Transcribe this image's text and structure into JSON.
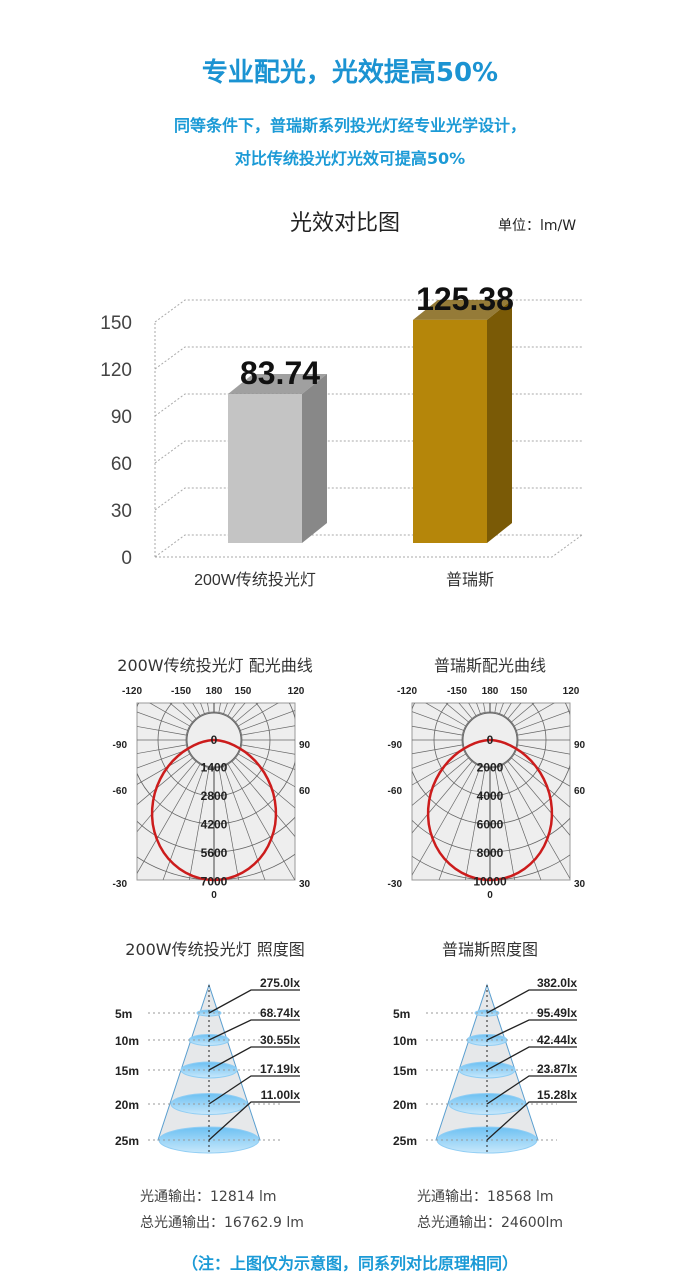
{
  "header": {
    "title": "专业配光，光效提高50%",
    "subtitle_line1": "同等条件下，普瑞斯系列投光灯经专业光学设计，",
    "subtitle_line2": "对比传统投光灯光效可提高50%"
  },
  "chart_data": {
    "type": "bar",
    "title": "光效对比图",
    "unit_label": "单位：lm/W",
    "categories": [
      "200W传统投光灯",
      "普瑞斯"
    ],
    "values": [
      83.74,
      125.38
    ],
    "value_labels": [
      "83.74",
      "125.38"
    ],
    "yticks": [
      "0",
      "30",
      "60",
      "90",
      "120",
      "150"
    ],
    "ylim": [
      0,
      150
    ],
    "grid": true,
    "colors": [
      "#c4c4c4",
      "#b5860a"
    ]
  },
  "polar": [
    {
      "title": "200W传统投光灯 配光曲线",
      "rings": [
        "0",
        "1400",
        "2800",
        "4200",
        "5600",
        "7000"
      ]
    },
    {
      "title": "普瑞斯配光曲线",
      "rings": [
        "0",
        "2000",
        "4000",
        "6000",
        "8000",
        "10000"
      ]
    }
  ],
  "polar_angles": {
    "top": [
      "-120",
      "-150",
      "180",
      "150",
      "120"
    ],
    "left": [
      "-90",
      "-60",
      "-30"
    ],
    "right": [
      "90",
      "60",
      "30"
    ],
    "bottom": "0"
  },
  "illum": [
    {
      "title": "200W传统投光灯 照度图",
      "lux": [
        "275.0lx",
        "68.74lx",
        "30.55lx",
        "17.19lx",
        "11.00lx"
      ],
      "flux": "光通输出：12814 lm",
      "total": "总光通输出：16762.9 lm"
    },
    {
      "title": "普瑞斯照度图",
      "lux": [
        "382.0lx",
        "95.49lx",
        "42.44lx",
        "23.87lx",
        "15.28lx"
      ],
      "flux": "光通输出：18568 lm",
      "total": "总光通输出：24600lm"
    }
  ],
  "distances": [
    "5m",
    "10m",
    "15m",
    "20m",
    "25m"
  ],
  "note": "（注：上图仅为示意图，同系列对比原理相同）"
}
